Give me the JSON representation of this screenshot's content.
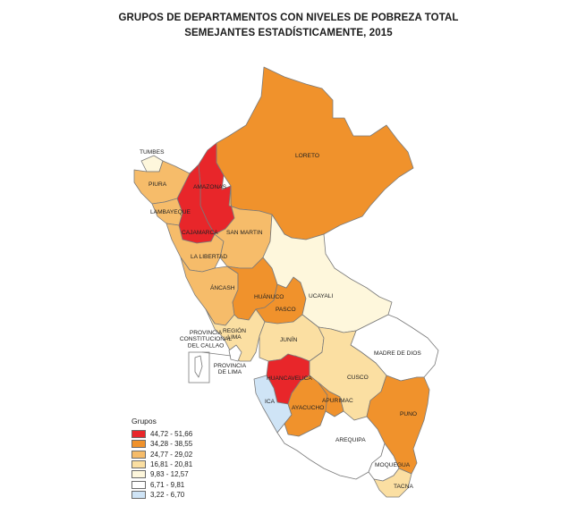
{
  "title": [
    "GRUPOS DE DEPARTAMENTOS CON NIVELES DE POBREZA TOTAL",
    "SEMEJANTES ESTADÍSTICAMENTE, 2015"
  ],
  "legend": {
    "title": "Grupos",
    "items": [
      {
        "range": "44,72 - 51,66",
        "color": "#e8262a"
      },
      {
        "range": "34,28 - 38,55",
        "color": "#f0922c"
      },
      {
        "range": "24,77 - 29,02",
        "color": "#f6bc6a"
      },
      {
        "range": "16,81 - 20,81",
        "color": "#fbdfa2"
      },
      {
        "range": "9,83 - 12,57",
        "color": "#fef7dc"
      },
      {
        "range": "6,71 - 9,81",
        "color": "#ffffff"
      },
      {
        "range": "3,22 - 6,70",
        "color": "#cfe4f6"
      }
    ]
  },
  "departments": [
    {
      "id": "loreto",
      "label": "LORETO",
      "group": 1
    },
    {
      "id": "amazonas",
      "label": "AMAZONAS",
      "group": 0
    },
    {
      "id": "cajamarca",
      "label": "CAJAMARCA",
      "group": 0
    },
    {
      "id": "tumbes",
      "label": "TUMBES",
      "group": 4
    },
    {
      "id": "piura",
      "label": "PIURA",
      "group": 2
    },
    {
      "id": "lambayeque",
      "label": "LAMBAYEQUE",
      "group": 2
    },
    {
      "id": "la-libertad",
      "label": "LA LIBERTAD",
      "group": 2
    },
    {
      "id": "san-martin",
      "label": "SAN MARTIN",
      "group": 2
    },
    {
      "id": "ancash",
      "label": "ÁNCASH",
      "group": 2
    },
    {
      "id": "huanuco",
      "label": "HUÁNUCO",
      "group": 1
    },
    {
      "id": "pasco",
      "label": "PASCO",
      "group": 1
    },
    {
      "id": "ucayali",
      "label": "UCAYALI",
      "group": 4
    },
    {
      "id": "region-lima",
      "label": "REGIÓN LIMA",
      "group": 3
    },
    {
      "id": "provincia-lima",
      "label": "PROVINCIA DE LIMA",
      "group": 5
    },
    {
      "id": "callao",
      "label": "PROVINCIA CONSTITUCIONAL DEL CALLAO",
      "group": 5
    },
    {
      "id": "junin",
      "label": "JUNÍN",
      "group": 3
    },
    {
      "id": "madre-de-dios",
      "label": "MADRE DE DIOS",
      "group": 5
    },
    {
      "id": "huancavelica",
      "label": "HUANCAVELICA",
      "group": 0
    },
    {
      "id": "cusco",
      "label": "CUSCO",
      "group": 3
    },
    {
      "id": "ica",
      "label": "ICA",
      "group": 6
    },
    {
      "id": "ayacucho",
      "label": "AYACUCHO",
      "group": 1
    },
    {
      "id": "apurimac",
      "label": "APURIMAC",
      "group": 1
    },
    {
      "id": "puno",
      "label": "PUNO",
      "group": 1
    },
    {
      "id": "arequipa",
      "label": "AREQUIPA",
      "group": 5
    },
    {
      "id": "moquegua",
      "label": "MOQUEGUA",
      "group": 5
    },
    {
      "id": "tacna",
      "label": "TACNA",
      "group": 3
    }
  ]
}
